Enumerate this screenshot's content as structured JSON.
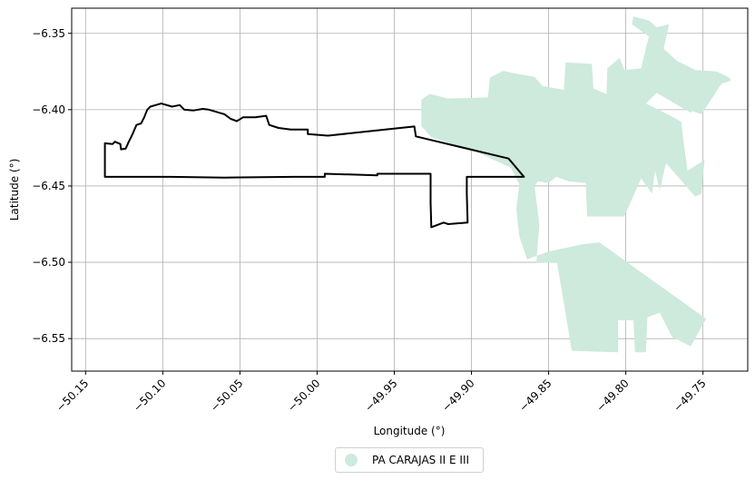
{
  "chart_data": {
    "type": "map",
    "xlabel": "Longitude (°)",
    "ylabel": "Latitude (°)",
    "xlim": [
      -50.159,
      -49.721
    ],
    "ylim": [
      -6.5713,
      -6.3335
    ],
    "x_ticks": [
      -50.15,
      -50.1,
      -50.05,
      -50.0,
      -49.95,
      -49.9,
      -49.85,
      -49.8,
      -49.75
    ],
    "x_tick_labels": [
      "−50.15",
      "−50.10",
      "−50.05",
      "−50.00",
      "−49.95",
      "−49.90",
      "−49.85",
      "−49.80",
      "−49.75"
    ],
    "y_ticks": [
      -6.35,
      -6.4,
      -6.45,
      -6.5,
      -6.55
    ],
    "y_tick_labels": [
      "−6.35",
      "−6.40",
      "−6.45",
      "−6.50",
      "−6.55"
    ],
    "grid": true,
    "legend": {
      "placement": "bottom-center",
      "entries": [
        {
          "label": "PA CARAJAS II E III",
          "color": "#cdeadc"
        }
      ]
    },
    "fill_color": "#cdeadc",
    "outline_color": "#000000",
    "filled_region": [
      [
        -49.9325,
        -6.4107
      ],
      [
        -49.9325,
        -6.3935
      ],
      [
        -49.9271,
        -6.3897
      ],
      [
        -49.9151,
        -6.3927
      ],
      [
        -49.8893,
        -6.392
      ],
      [
        -49.888,
        -6.379
      ],
      [
        -49.8793,
        -6.3745
      ],
      [
        -49.8708,
        -6.3765
      ],
      [
        -49.8591,
        -6.3785
      ],
      [
        -49.854,
        -6.3845
      ],
      [
        -49.8401,
        -6.387
      ],
      [
        -49.839,
        -6.369
      ],
      [
        -49.822,
        -6.37
      ],
      [
        -49.821,
        -6.386
      ],
      [
        -49.8125,
        -6.39
      ],
      [
        -49.812,
        -6.373
      ],
      [
        -49.804,
        -6.366
      ],
      [
        -49.801,
        -6.374
      ],
      [
        -49.7901,
        -6.373
      ],
      [
        -49.7851,
        -6.352
      ],
      [
        -49.796,
        -6.344
      ],
      [
        -49.7952,
        -6.3389
      ],
      [
        -49.7851,
        -6.3415
      ],
      [
        -49.78,
        -6.346
      ],
      [
        -49.772,
        -6.344
      ],
      [
        -49.7755,
        -6.36
      ],
      [
        -49.767,
        -6.368
      ],
      [
        -49.755,
        -6.374
      ],
      [
        -49.741,
        -6.375
      ],
      [
        -49.733,
        -6.379
      ],
      [
        -49.732,
        -6.381
      ],
      [
        -49.738,
        -6.383
      ],
      [
        -49.751,
        -6.403
      ],
      [
        -49.757,
        -6.401
      ],
      [
        -49.758,
        -6.402
      ],
      [
        -49.78,
        -6.389
      ],
      [
        -49.787,
        -6.396
      ],
      [
        -49.771,
        -6.404
      ],
      [
        -49.764,
        -6.408
      ],
      [
        -49.763,
        -6.418
      ],
      [
        -49.76,
        -6.44
      ],
      [
        -49.749,
        -6.433
      ],
      [
        -49.751,
        -6.455
      ],
      [
        -49.755,
        -6.457
      ],
      [
        -49.774,
        -6.435
      ],
      [
        -49.778,
        -6.453
      ],
      [
        -49.781,
        -6.44
      ],
      [
        -49.783,
        -6.455
      ],
      [
        -49.79,
        -6.445
      ],
      [
        -49.801,
        -6.47
      ],
      [
        -49.825,
        -6.47
      ],
      [
        -49.826,
        -6.448
      ],
      [
        -49.837,
        -6.447
      ],
      [
        -49.845,
        -6.444
      ],
      [
        -49.85,
        -6.448
      ],
      [
        -49.857,
        -6.447
      ],
      [
        -49.8591,
        -6.45
      ],
      [
        -49.856,
        -6.475
      ],
      [
        -49.858,
        -6.5
      ],
      [
        -49.8445,
        -6.5005
      ],
      [
        -49.835,
        -6.558
      ],
      [
        -49.805,
        -6.559
      ],
      [
        -49.805,
        -6.538
      ],
      [
        -49.795,
        -6.538
      ],
      [
        -49.794,
        -6.559
      ],
      [
        -49.787,
        -6.559
      ],
      [
        -49.786,
        -6.536
      ],
      [
        -49.778,
        -6.533
      ],
      [
        -49.77,
        -6.549
      ],
      [
        -49.758,
        -6.555
      ],
      [
        -49.748,
        -6.537
      ],
      [
        -49.817,
        -6.487
      ],
      [
        -49.827,
        -6.488
      ],
      [
        -49.85,
        -6.493
      ],
      [
        -49.864,
        -6.498
      ],
      [
        -49.869,
        -6.483
      ],
      [
        -49.871,
        -6.465
      ],
      [
        -49.869,
        -6.449
      ],
      [
        -49.8745,
        -6.438
      ],
      [
        -49.895,
        -6.4285
      ],
      [
        -49.926,
        -6.418
      ]
    ],
    "outline_region": [
      [
        -50.1375,
        -6.444
      ],
      [
        -50.1375,
        -6.422
      ],
      [
        -50.1325,
        -6.4225
      ],
      [
        -50.131,
        -6.421
      ],
      [
        -50.1275,
        -6.4225
      ],
      [
        -50.127,
        -6.426
      ],
      [
        -50.124,
        -6.4255
      ],
      [
        -50.122,
        -6.421
      ],
      [
        -50.12,
        -6.417
      ],
      [
        -50.117,
        -6.41
      ],
      [
        -50.114,
        -6.409
      ],
      [
        -50.112,
        -6.405
      ],
      [
        -50.11,
        -6.4
      ],
      [
        -50.108,
        -6.398
      ],
      [
        -50.101,
        -6.396
      ],
      [
        -50.094,
        -6.398
      ],
      [
        -50.089,
        -6.397
      ],
      [
        -50.086,
        -6.4
      ],
      [
        -50.08,
        -6.4005
      ],
      [
        -50.074,
        -6.3995
      ],
      [
        -50.07,
        -6.4
      ],
      [
        -50.065,
        -6.4015
      ],
      [
        -50.06,
        -6.403
      ],
      [
        -50.056,
        -6.406
      ],
      [
        -50.052,
        -6.4075
      ],
      [
        -50.048,
        -6.405
      ],
      [
        -50.04,
        -6.405
      ],
      [
        -50.033,
        -6.404
      ],
      [
        -50.031,
        -6.41
      ],
      [
        -50.025,
        -6.412
      ],
      [
        -50.017,
        -6.413
      ],
      [
        -50.006,
        -6.413
      ],
      [
        -50.006,
        -6.416
      ],
      [
        -49.993,
        -6.417
      ],
      [
        -49.937,
        -6.411
      ],
      [
        -49.936,
        -6.4175
      ],
      [
        -49.876,
        -6.432
      ],
      [
        -49.866,
        -6.444
      ],
      [
        -49.903,
        -6.444
      ],
      [
        -49.903,
        -6.455
      ],
      [
        -49.9025,
        -6.474
      ],
      [
        -49.915,
        -6.475
      ],
      [
        -49.918,
        -6.474
      ],
      [
        -49.926,
        -6.477
      ],
      [
        -49.9265,
        -6.461
      ],
      [
        -49.9265,
        -6.442
      ],
      [
        -49.961,
        -6.442
      ],
      [
        -49.961,
        -6.443
      ],
      [
        -49.995,
        -6.442
      ],
      [
        -49.995,
        -6.444
      ],
      [
        -50.015,
        -6.444
      ],
      [
        -50.06,
        -6.4445
      ],
      [
        -50.095,
        -6.444
      ],
      [
        -50.1375,
        -6.444
      ]
    ]
  }
}
